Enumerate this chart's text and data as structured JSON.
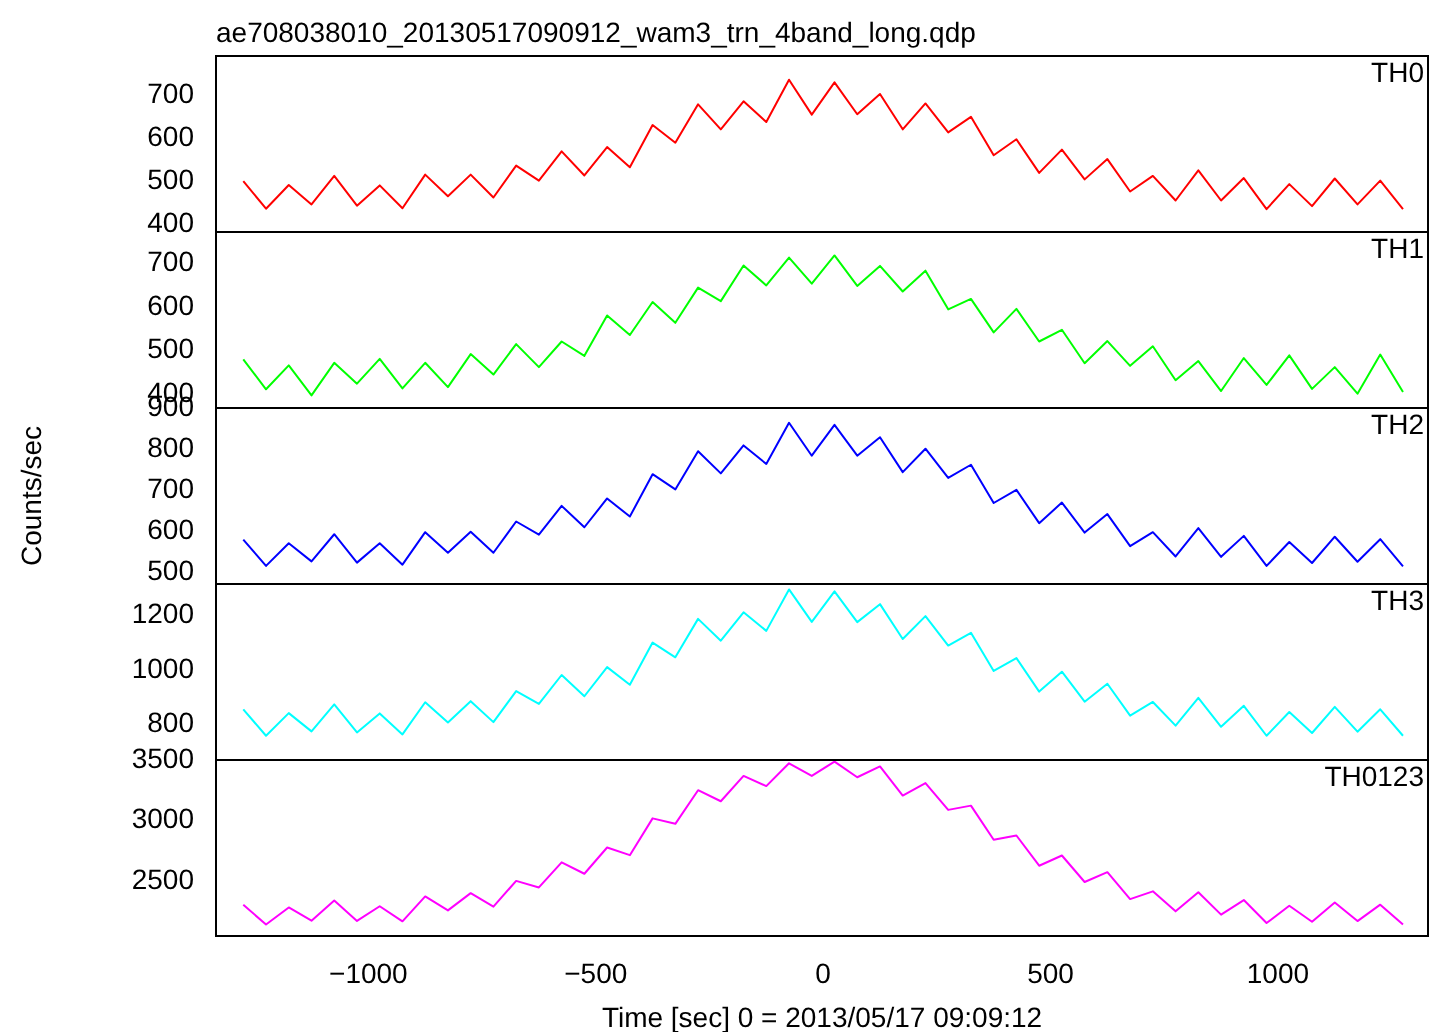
{
  "chart_data": [
    {
      "type": "line",
      "title": "ae708038010_20130517090912_wam3_trn_4band_long.qdp",
      "x": [
        -1275,
        -1225,
        -1175,
        -1125,
        -1075,
        -1025,
        -975,
        -925,
        -875,
        -825,
        -775,
        -725,
        -675,
        -625,
        -575,
        -525,
        -475,
        -425,
        -375,
        -325,
        -275,
        -225,
        -175,
        -125,
        -75,
        -25,
        25,
        75,
        125,
        175,
        225,
        275,
        325,
        375,
        425,
        475,
        525,
        575,
        625,
        675,
        725,
        775,
        825,
        875,
        925,
        975,
        1025,
        1075,
        1125,
        1175,
        1225,
        1275
      ],
      "series": [
        {
          "color": "#ff0000",
          "values": [
            500,
            436,
            491,
            446,
            512,
            443,
            490,
            437,
            515,
            465,
            515,
            462,
            536,
            501,
            569,
            513,
            579,
            532,
            630,
            589,
            678,
            620,
            685,
            637,
            735,
            654,
            729,
            655,
            702,
            620,
            680,
            613,
            649,
            560,
            597,
            519,
            573,
            504,
            551,
            476,
            512,
            455,
            525,
            455,
            507,
            435,
            493,
            442,
            506,
            446,
            501,
            435
          ]
        }
      ],
      "xlim": [
        -1335,
        1330
      ],
      "xticks": [
        -1000,
        -500,
        0,
        500,
        1000
      ],
      "ylim": [
        382,
        790
      ],
      "yticks": [
        400,
        500,
        600,
        700
      ],
      "tick_labels": "y",
      "annotations": [
        "TH0"
      ]
    },
    {
      "type": "line",
      "x": [
        -1275,
        -1225,
        -1175,
        -1125,
        -1075,
        -1025,
        -975,
        -925,
        -875,
        -825,
        -775,
        -725,
        -675,
        -625,
        -575,
        -525,
        -475,
        -425,
        -375,
        -325,
        -275,
        -225,
        -175,
        -125,
        -75,
        -25,
        25,
        75,
        125,
        175,
        225,
        275,
        325,
        375,
        425,
        475,
        525,
        575,
        625,
        675,
        725,
        775,
        825,
        875,
        925,
        975,
        1025,
        1075,
        1125,
        1175,
        1225,
        1275
      ],
      "series": [
        {
          "color": "#00ff00",
          "values": [
            480,
            411,
            466,
            397,
            472,
            424,
            481,
            413,
            472,
            416,
            492,
            445,
            515,
            462,
            521,
            488,
            581,
            536,
            612,
            564,
            645,
            614,
            696,
            650,
            714,
            654,
            719,
            649,
            695,
            636,
            684,
            595,
            619,
            542,
            596,
            521,
            548,
            471,
            522,
            465,
            510,
            432,
            476,
            407,
            483,
            421,
            489,
            412,
            462,
            401,
            491,
            405
          ]
        }
      ],
      "xlim": [
        -1335,
        1330
      ],
      "xticks": [
        -1000,
        -500,
        0,
        500,
        1000
      ],
      "ylim": [
        368,
        773
      ],
      "yticks": [
        400,
        500,
        600,
        700
      ],
      "tick_labels": "y",
      "annotations": [
        "TH1"
      ]
    },
    {
      "type": "line",
      "ylabel": "Counts/sec",
      "x": [
        -1275,
        -1225,
        -1175,
        -1125,
        -1075,
        -1025,
        -975,
        -925,
        -875,
        -825,
        -775,
        -725,
        -675,
        -625,
        -575,
        -525,
        -475,
        -425,
        -375,
        -325,
        -275,
        -225,
        -175,
        -125,
        -75,
        -25,
        25,
        75,
        125,
        175,
        225,
        275,
        325,
        375,
        425,
        475,
        525,
        575,
        625,
        675,
        725,
        775,
        825,
        875,
        925,
        975,
        1025,
        1075,
        1125,
        1175,
        1225,
        1275
      ],
      "series": [
        {
          "color": "#0000ff",
          "values": [
            580,
            516,
            571,
            527,
            593,
            524,
            571,
            519,
            598,
            548,
            599,
            548,
            624,
            592,
            662,
            610,
            680,
            636,
            739,
            702,
            795,
            741,
            809,
            764,
            864,
            784,
            859,
            784,
            829,
            744,
            801,
            730,
            762,
            669,
            701,
            620,
            670,
            597,
            642,
            564,
            598,
            539,
            608,
            538,
            589,
            516,
            574,
            523,
            587,
            526,
            581,
            515
          ]
        }
      ],
      "xlim": [
        -1335,
        1330
      ],
      "xticks": [
        -1000,
        -500,
        0,
        500,
        1000
      ],
      "ylim": [
        472,
        900
      ],
      "yticks": [
        500,
        600,
        700,
        800,
        900
      ],
      "tick_labels": "y",
      "annotations": [
        "TH2"
      ]
    },
    {
      "type": "line",
      "x": [
        -1275,
        -1225,
        -1175,
        -1125,
        -1075,
        -1025,
        -975,
        -925,
        -875,
        -825,
        -775,
        -725,
        -675,
        -625,
        -575,
        -525,
        -475,
        -425,
        -375,
        -325,
        -275,
        -225,
        -175,
        -125,
        -75,
        -25,
        25,
        75,
        125,
        175,
        225,
        275,
        325,
        375,
        425,
        475,
        525,
        575,
        625,
        675,
        725,
        775,
        825,
        875,
        925,
        975,
        1025,
        1075,
        1125,
        1175,
        1225,
        1275
      ],
      "series": [
        {
          "color": "#00ffff",
          "values": [
            856,
            759,
            842,
            775,
            874,
            771,
            841,
            764,
            882,
            808,
            886,
            809,
            923,
            876,
            982,
            904,
            1011,
            946,
            1101,
            1047,
            1188,
            1108,
            1212,
            1144,
            1296,
            1177,
            1289,
            1176,
            1242,
            1114,
            1198,
            1090,
            1137,
            997,
            1044,
            921,
            994,
            884,
            950,
            833,
            883,
            796,
            898,
            792,
            869,
            759,
            846,
            769,
            865,
            774,
            856,
            759
          ]
        }
      ],
      "xlim": [
        -1335,
        1330
      ],
      "xticks": [
        -1000,
        -500,
        0,
        500,
        1000
      ],
      "ylim": [
        670,
        1316
      ],
      "yticks": [
        800,
        1000,
        1200
      ],
      "tick_labels": "y",
      "annotations": [
        "TH3"
      ]
    },
    {
      "type": "line",
      "xlabel": "Time [sec] 0 = 2013/05/17 09:09:12",
      "x": [
        -1275,
        -1225,
        -1175,
        -1125,
        -1075,
        -1025,
        -975,
        -925,
        -875,
        -825,
        -775,
        -725,
        -675,
        -625,
        -575,
        -525,
        -475,
        -425,
        -375,
        -325,
        -275,
        -225,
        -175,
        -125,
        -75,
        -25,
        25,
        75,
        125,
        175,
        225,
        275,
        325,
        375,
        425,
        475,
        525,
        575,
        625,
        675,
        725,
        775,
        825,
        875,
        925,
        975,
        1025,
        1075,
        1125,
        1175,
        1225,
        1275
      ],
      "series": [
        {
          "color": "#ff00ff",
          "values": [
            2307,
            2145,
            2285,
            2176,
            2342,
            2174,
            2295,
            2171,
            2376,
            2261,
            2403,
            2292,
            2504,
            2450,
            2657,
            2563,
            2779,
            2716,
            3019,
            2974,
            3251,
            3160,
            3369,
            3285,
            3473,
            3369,
            3487,
            3358,
            3447,
            3207,
            3310,
            3089,
            3124,
            2843,
            2878,
            2629,
            2713,
            2495,
            2576,
            2354,
            2418,
            2253,
            2411,
            2226,
            2346,
            2157,
            2299,
            2167,
            2326,
            2173,
            2308,
            2144
          ]
        }
      ],
      "xlim": [
        -1335,
        1330
      ],
      "xticks": [
        -1000,
        -500,
        0,
        500,
        1000
      ],
      "ylim": [
        2050,
        3500
      ],
      "yticks": [
        2500,
        3000,
        3500
      ],
      "annotations": [
        "TH0123"
      ]
    }
  ]
}
